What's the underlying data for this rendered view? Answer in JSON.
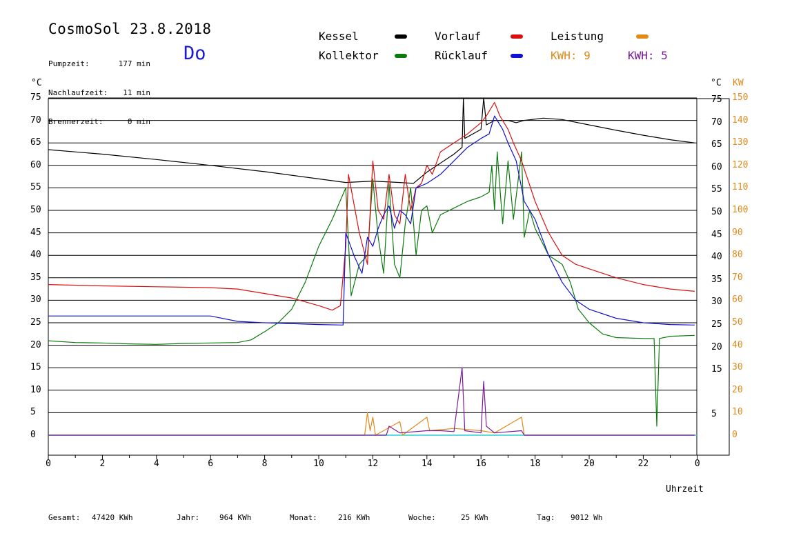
{
  "header": {
    "title": "CosmoSol 23.8.2018",
    "day": "Do",
    "info": [
      {
        "label": "Pumpzeit:",
        "value": "177 min"
      },
      {
        "label": "Nachlaufzeit:",
        "value": "11 min"
      },
      {
        "label": "Brennerzeit:",
        "value": "0 min"
      }
    ]
  },
  "legend": {
    "kessel": "Kessel",
    "kollektor": "Kollektor",
    "vorlauf": "Vorlauf",
    "ruecklauf": "Rücklauf",
    "leistung": "Leistung",
    "kwh1": "KWH: 9",
    "kwh2": "KWH: 5"
  },
  "axes": {
    "left_unit": "°C",
    "right_unit_c": "°C",
    "right_unit_kw": "KW",
    "xlabel": "Uhrzeit"
  },
  "footer": {
    "gesamt_label": "Gesamt:",
    "gesamt_value": "47420 KWh",
    "jahr_label": "Jahr:",
    "jahr_value": "964 KWh",
    "monat_label": "Monat:",
    "monat_value": "216 KWh",
    "woche_label": "Woche:",
    "woche_value": "25 KWh",
    "tag_label": "Tag:",
    "tag_value": "9012 Wh"
  },
  "colors": {
    "kessel": "#000000",
    "kollektor": "#0c7a0c",
    "vorlauf": "#d81010",
    "ruecklauf": "#1010d0",
    "leistung": "#e08a1a",
    "kwh2": "#7a1a9a",
    "zero": "#2ad2d2"
  },
  "chart_data": {
    "type": "line",
    "xlabel": "Uhrzeit",
    "ylabel": "°C",
    "xlim": [
      0,
      24
    ],
    "ylim": [
      -5,
      77
    ],
    "x_ticks": [
      "0",
      "2",
      "4",
      "6",
      "8",
      "10",
      "12",
      "14",
      "16",
      "18",
      "20",
      "22",
      "0"
    ],
    "y_ticks_left": [
      "0",
      "5",
      "10",
      "15",
      "20",
      "25",
      "30",
      "35",
      "40",
      "45",
      "50",
      "55",
      "60",
      "65",
      "70",
      "75"
    ],
    "y_ticks_right_c": [
      "5",
      "15",
      "20",
      "25",
      "30",
      "35",
      "40",
      "45",
      "50",
      "55",
      "60",
      "65",
      "70",
      "75"
    ],
    "y_ticks_right_kw": [
      "0",
      "10",
      "20",
      "30",
      "40",
      "50",
      "60",
      "70",
      "80",
      "90",
      "100",
      "110",
      "120",
      "130",
      "140",
      "150"
    ],
    "series": [
      {
        "name": "Kessel",
        "color": "#000000",
        "points": [
          [
            0,
            63.5
          ],
          [
            2,
            62.5
          ],
          [
            4,
            61.3
          ],
          [
            6,
            60
          ],
          [
            8,
            58.6
          ],
          [
            10,
            57
          ],
          [
            11,
            56.2
          ],
          [
            12,
            56.5
          ],
          [
            13,
            56.2
          ],
          [
            13.5,
            56
          ],
          [
            14,
            58.5
          ],
          [
            15,
            62.5
          ],
          [
            15.3,
            64
          ],
          [
            15.35,
            75
          ],
          [
            15.4,
            66
          ],
          [
            16,
            68
          ],
          [
            16.1,
            75
          ],
          [
            16.2,
            69
          ],
          [
            16.5,
            70
          ],
          [
            17,
            70
          ],
          [
            17.3,
            69.5
          ],
          [
            17.6,
            70
          ],
          [
            18.3,
            70.5
          ],
          [
            19,
            70.2
          ],
          [
            20,
            69
          ],
          [
            21,
            67.8
          ],
          [
            22,
            66.7
          ],
          [
            23,
            65.7
          ],
          [
            23.9,
            65
          ]
        ]
      },
      {
        "name": "Kollektor",
        "color": "#0c7a0c",
        "points": [
          [
            0,
            21
          ],
          [
            1,
            20.6
          ],
          [
            2,
            20.5
          ],
          [
            3,
            20.3
          ],
          [
            4,
            20.2
          ],
          [
            5,
            20.4
          ],
          [
            6,
            20.5
          ],
          [
            7,
            20.6
          ],
          [
            7.5,
            21.2
          ],
          [
            8,
            23
          ],
          [
            8.5,
            25
          ],
          [
            9,
            28
          ],
          [
            9.5,
            34
          ],
          [
            10,
            42
          ],
          [
            10.5,
            48
          ],
          [
            11,
            55
          ],
          [
            11.2,
            31
          ],
          [
            11.5,
            38
          ],
          [
            11.8,
            40
          ],
          [
            12,
            57
          ],
          [
            12.2,
            44
          ],
          [
            12.4,
            36
          ],
          [
            12.6,
            56
          ],
          [
            12.8,
            38
          ],
          [
            13,
            35
          ],
          [
            13.2,
            47
          ],
          [
            13.4,
            55
          ],
          [
            13.6,
            40
          ],
          [
            13.8,
            50
          ],
          [
            14,
            51
          ],
          [
            14.2,
            45
          ],
          [
            14.5,
            49
          ],
          [
            15,
            50.5
          ],
          [
            15.5,
            52
          ],
          [
            16,
            53
          ],
          [
            16.3,
            54
          ],
          [
            16.4,
            60
          ],
          [
            16.5,
            50
          ],
          [
            16.6,
            63
          ],
          [
            16.8,
            47
          ],
          [
            17,
            61
          ],
          [
            17.2,
            48
          ],
          [
            17.5,
            63
          ],
          [
            17.6,
            44
          ],
          [
            17.8,
            50
          ],
          [
            18,
            46
          ],
          [
            18.5,
            40
          ],
          [
            19,
            38
          ],
          [
            19.3,
            34
          ],
          [
            19.6,
            28
          ],
          [
            20,
            25
          ],
          [
            20.5,
            22.5
          ],
          [
            21,
            21.7
          ],
          [
            22,
            21.5
          ],
          [
            22.4,
            21.5
          ],
          [
            22.5,
            2
          ],
          [
            22.6,
            21.5
          ],
          [
            23,
            22
          ],
          [
            23.9,
            22.2
          ]
        ]
      },
      {
        "name": "Vorlauf",
        "color": "#d81010",
        "points": [
          [
            0,
            33.5
          ],
          [
            2,
            33.2
          ],
          [
            4,
            33
          ],
          [
            6,
            32.8
          ],
          [
            7,
            32.5
          ],
          [
            8,
            31.5
          ],
          [
            9,
            30.5
          ],
          [
            10,
            28.8
          ],
          [
            10.5,
            27.8
          ],
          [
            10.8,
            28.8
          ],
          [
            11,
            42
          ],
          [
            11.1,
            58
          ],
          [
            11.5,
            45
          ],
          [
            11.8,
            38
          ],
          [
            12,
            61
          ],
          [
            12.2,
            50
          ],
          [
            12.4,
            48
          ],
          [
            12.6,
            58
          ],
          [
            12.8,
            49
          ],
          [
            13,
            47
          ],
          [
            13.2,
            58
          ],
          [
            13.4,
            50
          ],
          [
            13.6,
            55
          ],
          [
            13.8,
            56
          ],
          [
            14,
            60
          ],
          [
            14.2,
            58
          ],
          [
            14.5,
            63
          ],
          [
            15,
            65
          ],
          [
            15.5,
            67
          ],
          [
            16,
            69.5
          ],
          [
            16.2,
            71
          ],
          [
            16.5,
            74
          ],
          [
            16.7,
            71
          ],
          [
            17,
            68
          ],
          [
            17.2,
            65
          ],
          [
            17.5,
            61
          ],
          [
            18,
            52
          ],
          [
            18.5,
            45
          ],
          [
            19,
            40
          ],
          [
            19.5,
            38
          ],
          [
            20,
            37
          ],
          [
            21,
            35
          ],
          [
            22,
            33.5
          ],
          [
            23,
            32.5
          ],
          [
            23.9,
            32
          ]
        ]
      },
      {
        "name": "Rücklauf",
        "color": "#1010d0",
        "points": [
          [
            0,
            26.5
          ],
          [
            2,
            26.5
          ],
          [
            4,
            26.5
          ],
          [
            6,
            26.5
          ],
          [
            7,
            25.3
          ],
          [
            8,
            25
          ],
          [
            9,
            24.8
          ],
          [
            10,
            24.6
          ],
          [
            10.9,
            24.5
          ],
          [
            11,
            45
          ],
          [
            11.3,
            40
          ],
          [
            11.6,
            36
          ],
          [
            11.8,
            44
          ],
          [
            12,
            42
          ],
          [
            12.2,
            46
          ],
          [
            12.4,
            49
          ],
          [
            12.6,
            51
          ],
          [
            12.8,
            46
          ],
          [
            13,
            50
          ],
          [
            13.2,
            49
          ],
          [
            13.4,
            47
          ],
          [
            13.6,
            55
          ],
          [
            14,
            56
          ],
          [
            14.5,
            58
          ],
          [
            15,
            61
          ],
          [
            15.5,
            64
          ],
          [
            16,
            66
          ],
          [
            16.3,
            67
          ],
          [
            16.5,
            71
          ],
          [
            16.8,
            68
          ],
          [
            17,
            65
          ],
          [
            17.3,
            61
          ],
          [
            17.6,
            52
          ],
          [
            18,
            48
          ],
          [
            18.5,
            40
          ],
          [
            19,
            34
          ],
          [
            19.5,
            30
          ],
          [
            20,
            28
          ],
          [
            21,
            26
          ],
          [
            22,
            25
          ],
          [
            23,
            24.6
          ],
          [
            23.9,
            24.5
          ]
        ]
      },
      {
        "name": "Leistung",
        "color": "#e08a1a",
        "points": [
          [
            0,
            0
          ],
          [
            11.7,
            0
          ],
          [
            11.8,
            5
          ],
          [
            11.9,
            1
          ],
          [
            12,
            4
          ],
          [
            12.1,
            0
          ],
          [
            13,
            3
          ],
          [
            13.1,
            0
          ],
          [
            14,
            4
          ],
          [
            14.1,
            1
          ],
          [
            15,
            1.5
          ],
          [
            16,
            1
          ],
          [
            16.5,
            0.5
          ],
          [
            17.5,
            4
          ],
          [
            17.6,
            0
          ],
          [
            23.9,
            0
          ]
        ]
      },
      {
        "name": "KWH: 5",
        "color": "#7a1a9a",
        "points": [
          [
            0,
            0
          ],
          [
            12.5,
            0
          ],
          [
            12.6,
            2
          ],
          [
            13,
            0.5
          ],
          [
            14,
            1
          ],
          [
            14.5,
            1
          ],
          [
            15,
            0.8
          ],
          [
            15.3,
            15
          ],
          [
            15.4,
            1
          ],
          [
            16,
            0.5
          ],
          [
            16.1,
            12
          ],
          [
            16.2,
            2
          ],
          [
            16.5,
            0.5
          ],
          [
            17.5,
            1
          ],
          [
            17.6,
            0
          ],
          [
            23.9,
            0
          ]
        ]
      }
    ]
  }
}
